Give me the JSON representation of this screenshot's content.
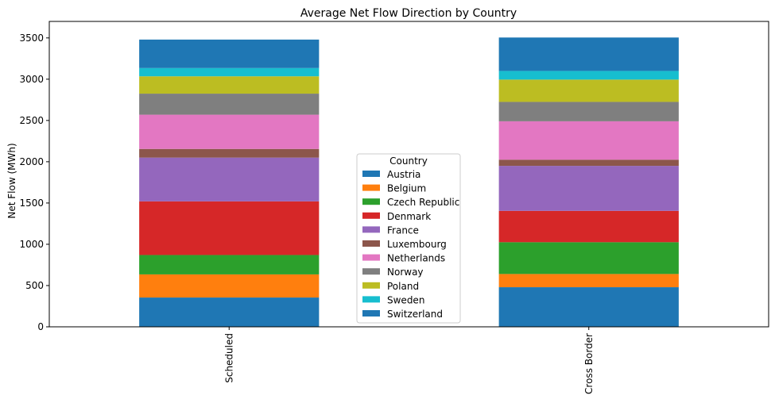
{
  "chart_data": {
    "type": "bar",
    "stacked": true,
    "title": "Average Net Flow Direction by Country",
    "xlabel": "",
    "ylabel": "Net Flow (MWh)",
    "ylim": [
      0,
      3700
    ],
    "yticks": [
      0,
      500,
      1000,
      1500,
      2000,
      2500,
      3000,
      3500
    ],
    "categories": [
      "Scheduled",
      "Cross Border"
    ],
    "legend_title": "Country",
    "legend_position": "center",
    "grid": false,
    "series": [
      {
        "name": "Austria",
        "color": "#1f77b4",
        "values": [
          355,
          480
        ]
      },
      {
        "name": "Belgium",
        "color": "#ff7f0e",
        "values": [
          280,
          160
        ]
      },
      {
        "name": "Czech Republic",
        "color": "#2ca02c",
        "values": [
          235,
          385
        ]
      },
      {
        "name": "Denmark",
        "color": "#d62728",
        "values": [
          650,
          380
        ]
      },
      {
        "name": "France",
        "color": "#9467bd",
        "values": [
          530,
          545
        ]
      },
      {
        "name": "Luxembourg",
        "color": "#8c564b",
        "values": [
          105,
          75
        ]
      },
      {
        "name": "Netherlands",
        "color": "#e377c2",
        "values": [
          415,
          465
        ]
      },
      {
        "name": "Norway",
        "color": "#7f7f7f",
        "values": [
          255,
          235
        ]
      },
      {
        "name": "Poland",
        "color": "#bcbd22",
        "values": [
          210,
          270
        ]
      },
      {
        "name": "Sweden",
        "color": "#17becf",
        "values": [
          100,
          105
        ]
      },
      {
        "name": "Switzerland",
        "color": "#1f77b4",
        "values": [
          345,
          405
        ]
      }
    ]
  }
}
